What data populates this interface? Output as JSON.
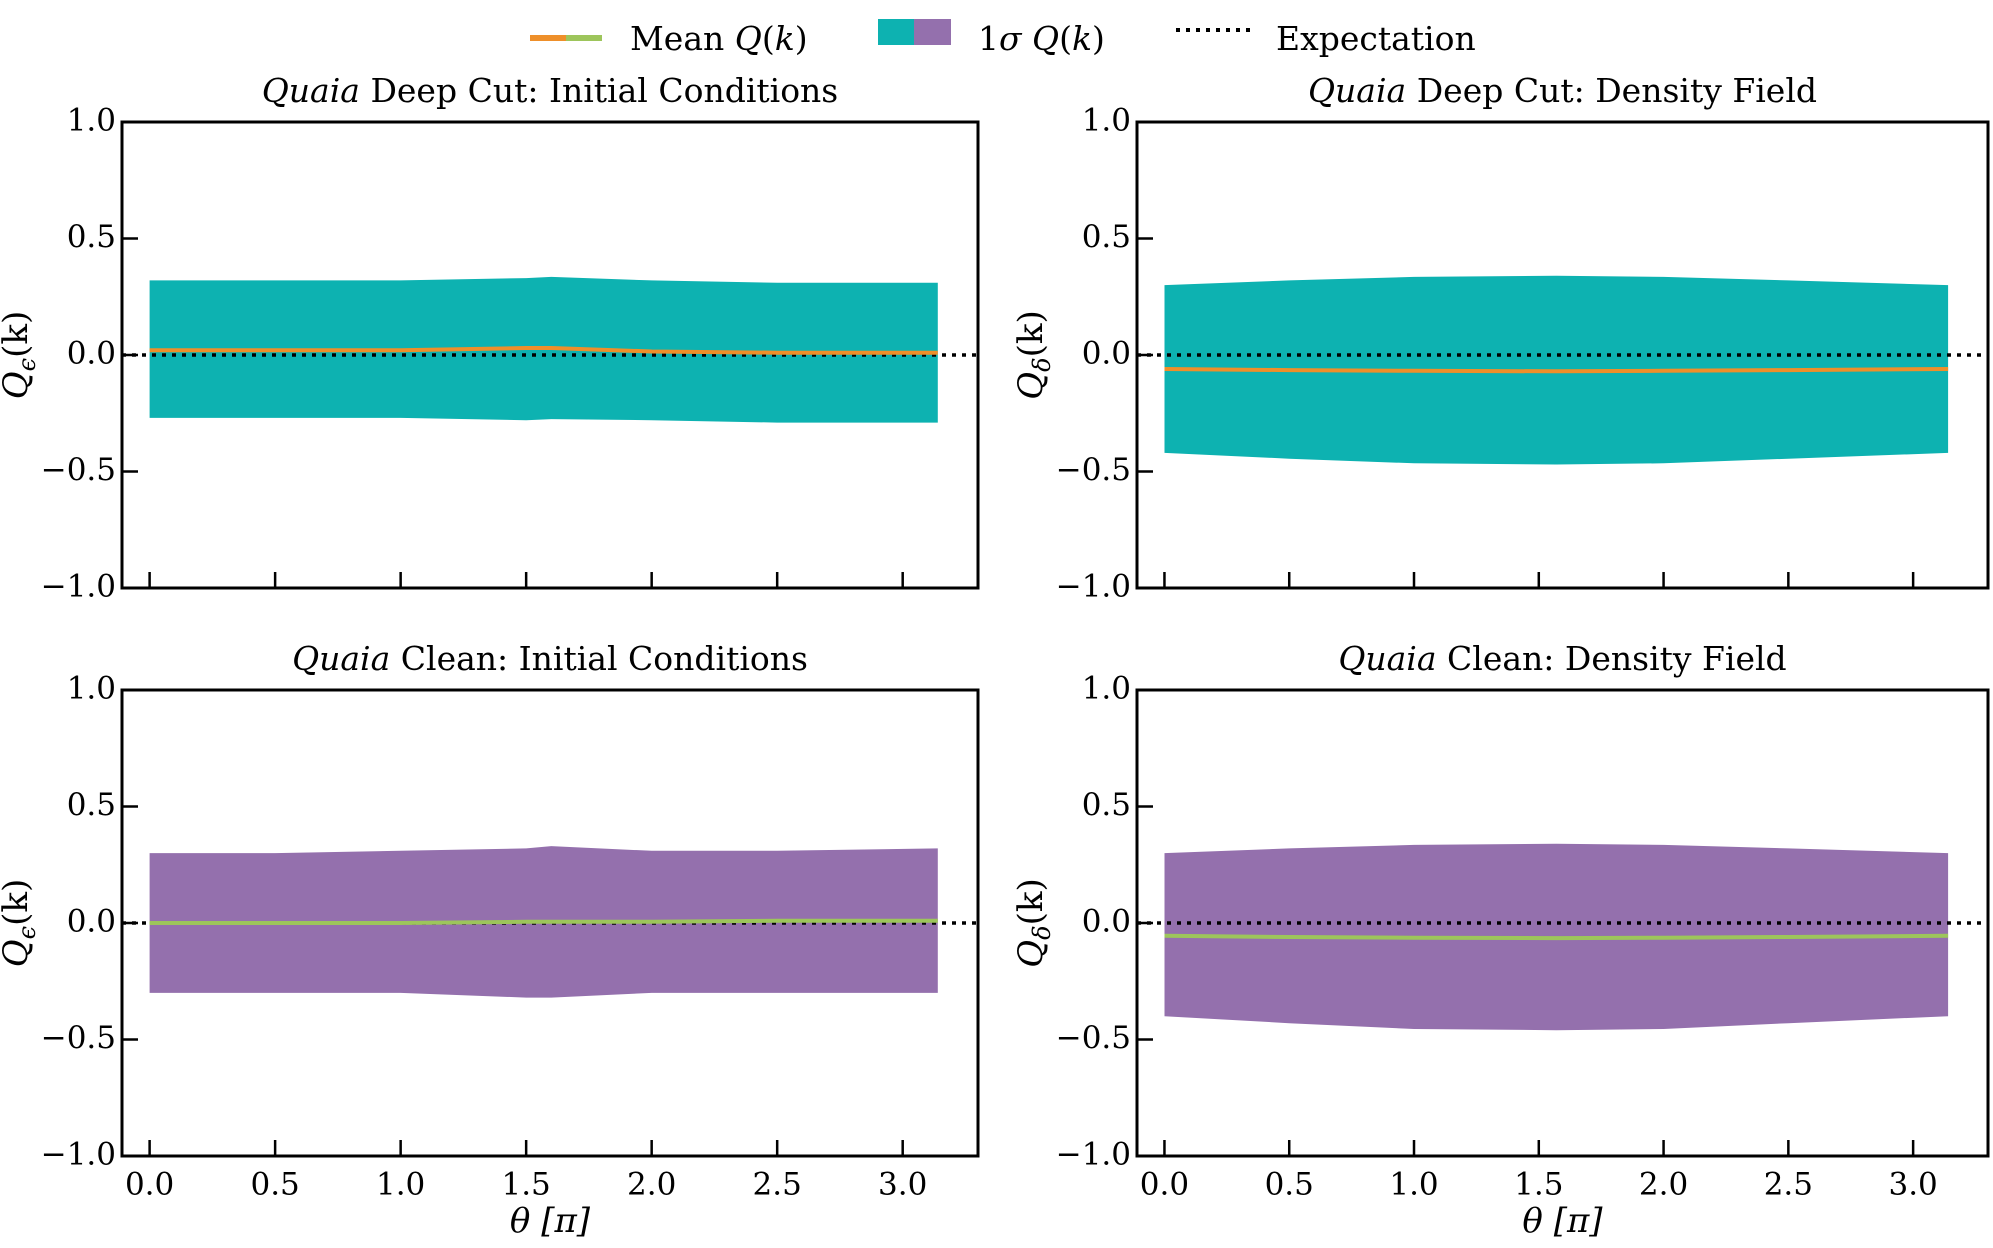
{
  "legend": {
    "mean_label": "Mean Q(k)",
    "band_label": "1σ Q(k)",
    "expect_label": "Expectation"
  },
  "colors": {
    "mean_deep": "#ee8f2a",
    "mean_clean": "#9dc55b",
    "band_deep": "#0db2b1",
    "band_clean": "#9470ad",
    "expectation": "#000000"
  },
  "chart_data": [
    {
      "type": "area",
      "id": "deep-initial",
      "title_italic": "Quaia",
      "title_rest": " Deep Cut: Initial Conditions",
      "ylabel_main": "Q",
      "ylabel_sub": "ϵ",
      "ylabel_paren": "(k)",
      "xlabel": "",
      "xlim": [
        -0.11,
        3.3
      ],
      "ylim": [
        -1.0,
        1.0
      ],
      "yticks": [
        1.0,
        0.5,
        0.0,
        -0.5,
        -1.0
      ],
      "ytick_labels": [
        "1.0",
        "0.5",
        "0.0",
        "−0.5",
        "−1.0"
      ],
      "xticks": [
        0.0,
        0.5,
        1.0,
        1.5,
        2.0,
        2.5,
        3.0
      ],
      "xtick_labels": [],
      "x": [
        0.0,
        0.5,
        1.0,
        1.5,
        1.6,
        2.0,
        2.5,
        3.14
      ],
      "band_upper": [
        0.32,
        0.32,
        0.32,
        0.33,
        0.335,
        0.32,
        0.31,
        0.31
      ],
      "band_lower": [
        -0.27,
        -0.27,
        -0.27,
        -0.28,
        -0.275,
        -0.28,
        -0.29,
        -0.29
      ],
      "mean": [
        0.02,
        0.02,
        0.02,
        0.03,
        0.03,
        0.015,
        0.01,
        0.01
      ],
      "expectation": 0.0,
      "band_color_key": "band_deep",
      "mean_color_key": "mean_deep"
    },
    {
      "type": "area",
      "id": "deep-density",
      "title_italic": "Quaia",
      "title_rest": " Deep Cut: Density Field",
      "ylabel_main": "Q",
      "ylabel_sub": "δ",
      "ylabel_paren": "(k)",
      "xlabel": "",
      "xlim": [
        -0.11,
        3.3
      ],
      "ylim": [
        -1.0,
        1.0
      ],
      "yticks": [
        1.0,
        0.5,
        0.0,
        -0.5,
        -1.0
      ],
      "ytick_labels": [
        "1.0",
        "0.5",
        "0.0",
        "−0.5",
        "−1.0"
      ],
      "xticks": [
        0.0,
        0.5,
        1.0,
        1.5,
        2.0,
        2.5,
        3.0
      ],
      "xtick_labels": [],
      "x": [
        0.0,
        0.5,
        1.0,
        1.57,
        2.0,
        2.5,
        3.14
      ],
      "band_upper": [
        0.3,
        0.32,
        0.335,
        0.34,
        0.335,
        0.32,
        0.3
      ],
      "band_lower": [
        -0.42,
        -0.445,
        -0.465,
        -0.47,
        -0.465,
        -0.445,
        -0.42
      ],
      "mean": [
        -0.06,
        -0.065,
        -0.068,
        -0.07,
        -0.068,
        -0.065,
        -0.06
      ],
      "expectation": 0.0,
      "band_color_key": "band_deep",
      "mean_color_key": "mean_deep"
    },
    {
      "type": "area",
      "id": "clean-initial",
      "title_italic": "Quaia",
      "title_rest": " Clean: Initial Conditions",
      "ylabel_main": "Q",
      "ylabel_sub": "ϵ",
      "ylabel_paren": "(k)",
      "xlabel": "θ [π]",
      "xlim": [
        -0.11,
        3.3
      ],
      "ylim": [
        -1.0,
        1.0
      ],
      "yticks": [
        1.0,
        0.5,
        0.0,
        -0.5,
        -1.0
      ],
      "ytick_labels": [
        "1.0",
        "0.5",
        "0.0",
        "−0.5",
        "−1.0"
      ],
      "xticks": [
        0.0,
        0.5,
        1.0,
        1.5,
        2.0,
        2.5,
        3.0
      ],
      "xtick_labels": [
        "0.0",
        "0.5",
        "1.0",
        "1.5",
        "2.0",
        "2.5",
        "3.0"
      ],
      "x": [
        0.0,
        0.5,
        1.0,
        1.5,
        1.6,
        2.0,
        2.5,
        3.14
      ],
      "band_upper": [
        0.3,
        0.3,
        0.31,
        0.32,
        0.33,
        0.31,
        0.31,
        0.32
      ],
      "band_lower": [
        -0.3,
        -0.3,
        -0.3,
        -0.32,
        -0.32,
        -0.3,
        -0.3,
        -0.3
      ],
      "mean": [
        0.0,
        0.0,
        0.0,
        0.005,
        0.005,
        0.005,
        0.01,
        0.01
      ],
      "expectation": 0.0,
      "band_color_key": "band_clean",
      "mean_color_key": "mean_clean"
    },
    {
      "type": "area",
      "id": "clean-density",
      "title_italic": "Quaia",
      "title_rest": " Clean: Density Field",
      "ylabel_main": "Q",
      "ylabel_sub": "δ",
      "ylabel_paren": "(k)",
      "xlabel": "θ [π]",
      "xlim": [
        -0.11,
        3.3
      ],
      "ylim": [
        -1.0,
        1.0
      ],
      "yticks": [
        1.0,
        0.5,
        0.0,
        -0.5,
        -1.0
      ],
      "ytick_labels": [
        "1.0",
        "0.5",
        "0.0",
        "−0.5",
        "−1.0"
      ],
      "xticks": [
        0.0,
        0.5,
        1.0,
        1.5,
        2.0,
        2.5,
        3.0
      ],
      "xtick_labels": [
        "0.0",
        "0.5",
        "1.0",
        "1.5",
        "2.0",
        "2.5",
        "3.0"
      ],
      "x": [
        0.0,
        0.5,
        1.0,
        1.57,
        2.0,
        2.5,
        3.14
      ],
      "band_upper": [
        0.3,
        0.32,
        0.335,
        0.34,
        0.335,
        0.32,
        0.3
      ],
      "band_lower": [
        -0.4,
        -0.43,
        -0.455,
        -0.46,
        -0.455,
        -0.43,
        -0.4
      ],
      "mean": [
        -0.055,
        -0.06,
        -0.063,
        -0.065,
        -0.063,
        -0.06,
        -0.055
      ],
      "expectation": 0.0,
      "band_color_key": "band_clean",
      "mean_color_key": "mean_clean"
    }
  ]
}
